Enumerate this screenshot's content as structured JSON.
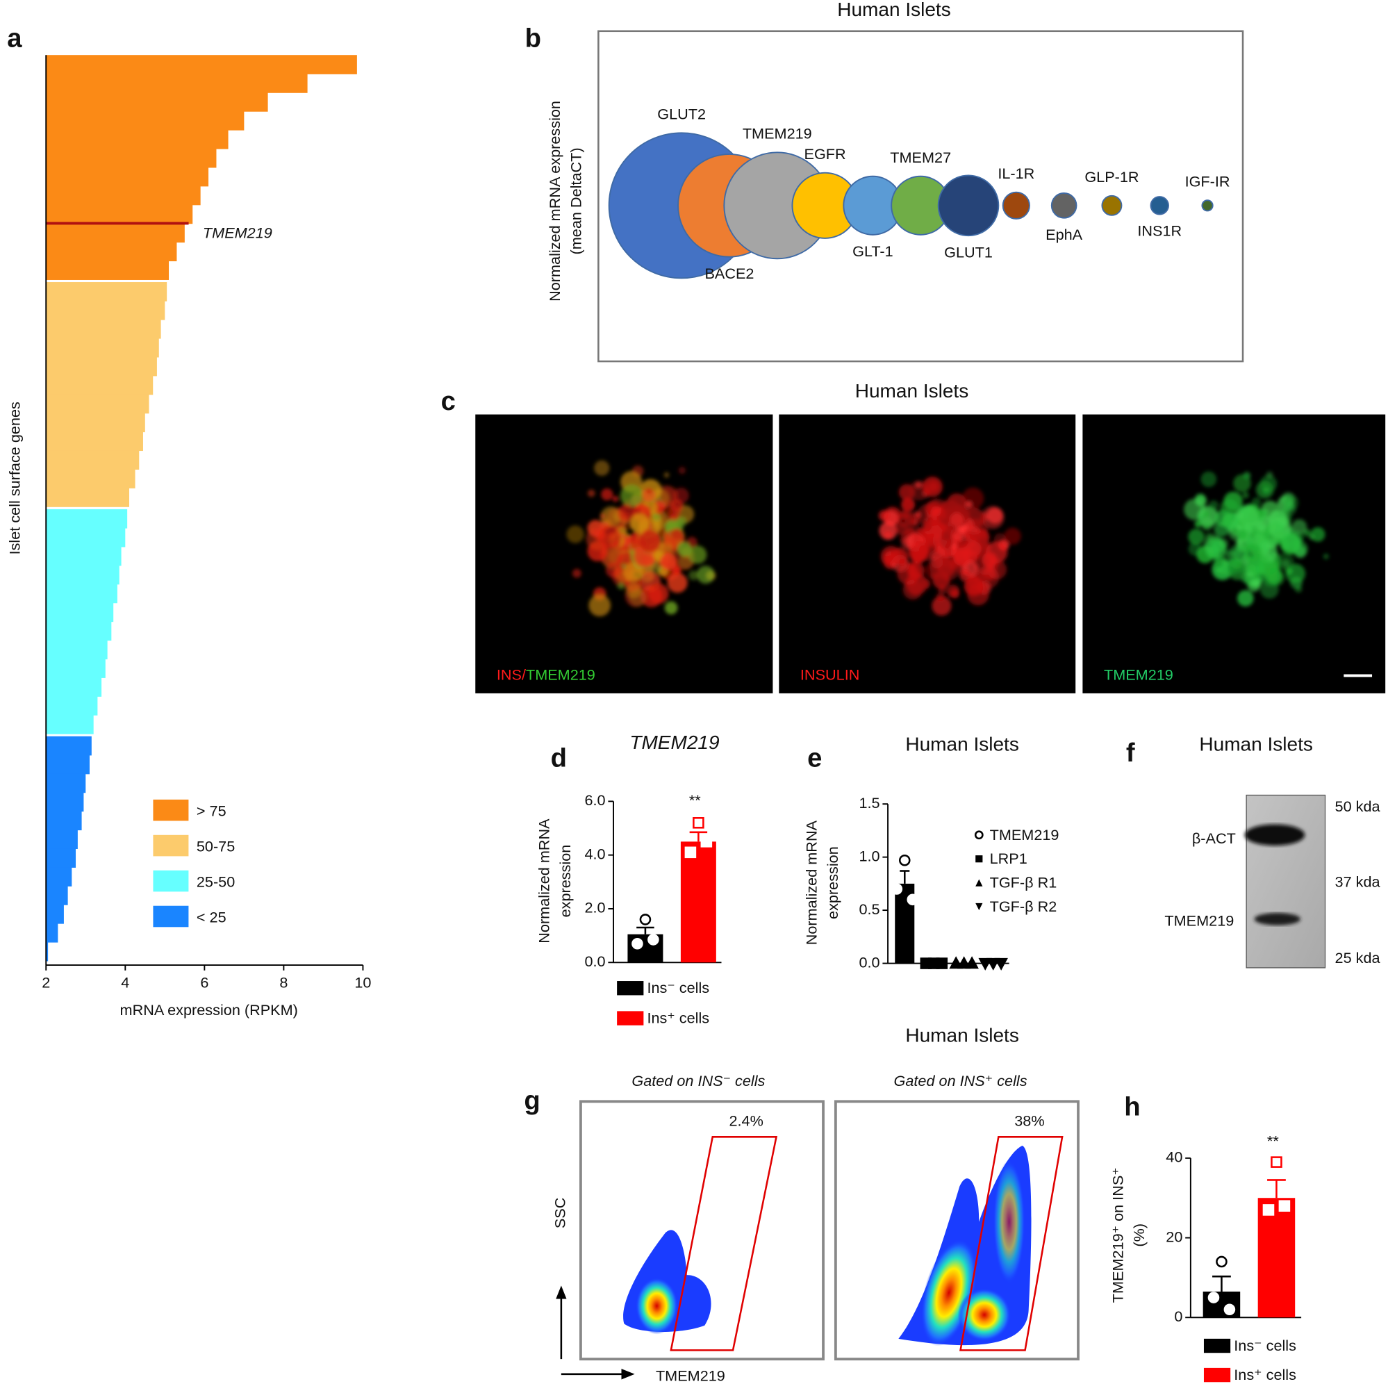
{
  "chart_data": [
    {
      "type": "ranked-hbar",
      "label": "a",
      "ylabel": "Islet cell surface genes",
      "xlabel": "mRNA expression (RPKM)",
      "xlim": [
        2,
        10
      ],
      "xticks": [
        2,
        4,
        6,
        8,
        10
      ],
      "series": [
        {
          "name": "> 75",
          "color": "#fb8a16",
          "values": [
            9.85,
            8.6,
            7.6,
            7.0,
            6.6,
            6.3,
            6.1,
            5.9,
            5.7,
            5.5,
            5.3,
            5.1
          ]
        },
        {
          "name": "50-75",
          "color": "#fccb6c",
          "values": [
            5.05,
            5.0,
            4.9,
            4.85,
            4.8,
            4.7,
            4.6,
            4.5,
            4.45,
            4.35,
            4.25,
            4.1
          ]
        },
        {
          "name": "25-50",
          "color": "#66ffff",
          "values": [
            4.05,
            4.0,
            3.9,
            3.85,
            3.8,
            3.7,
            3.65,
            3.55,
            3.5,
            3.4,
            3.3,
            3.2
          ]
        },
        {
          "name": "< 25",
          "color": "#1a85ff",
          "values": [
            3.15,
            3.1,
            3.0,
            2.95,
            2.9,
            2.8,
            2.75,
            2.65,
            2.55,
            2.45,
            2.3,
            2.05
          ]
        }
      ],
      "annotation": {
        "text": "TMEM219",
        "value": 5.6,
        "color": "#b01010"
      }
    },
    {
      "type": "bubble",
      "label": "b",
      "title": "Human Islets",
      "ylabel": [
        "Normalized mRNA expression",
        "(mean DeltaCT)"
      ],
      "categories": [
        "GLUT2",
        "BACE2",
        "TMEM219",
        "EGFR",
        "GLT-1",
        "TMEM27",
        "GLUT1",
        "IL-1R",
        "EphA",
        "GLP-1R",
        "INS1R",
        "IGF-IR"
      ],
      "values": [
        82,
        58,
        60,
        37,
        33,
        33,
        34,
        15,
        14,
        11,
        10,
        6
      ],
      "colors": [
        "#4472c4",
        "#ed7d31",
        "#a5a5a5",
        "#ffc000",
        "#5b9bd5",
        "#70ad47",
        "#264478",
        "#9e480e",
        "#636363",
        "#997300",
        "#255e91",
        "#43682b"
      ]
    },
    {
      "type": "dotbar",
      "label": "d",
      "title": "TMEM219",
      "ylabel": [
        "Normalized mRNA",
        "expression"
      ],
      "ylim": [
        0,
        6
      ],
      "yticks": [
        {
          "value": 0,
          "label": "0.0"
        },
        {
          "value": 2,
          "label": "2.0"
        },
        {
          "value": 4,
          "label": "4.0"
        },
        {
          "value": 6,
          "label": "6.0"
        }
      ],
      "categories": [
        "Ins⁻ cells",
        "Ins⁺ cells"
      ],
      "colors": [
        "#000000",
        "#ff0000"
      ],
      "markers": [
        "circle",
        "square"
      ],
      "values": [
        1.05,
        4.5
      ],
      "errors": [
        0.25,
        0.35
      ],
      "points": [
        [
          1.6,
          0.7,
          0.85
        ],
        [
          5.2,
          4.1,
          4.5
        ]
      ],
      "significance": [
        null,
        "**"
      ],
      "legend_style": "swatch"
    },
    {
      "type": "dotbar",
      "label": "e",
      "title": "Human Islets",
      "ylabel": [
        "Normalized mRNA",
        "expression"
      ],
      "ylim": [
        0,
        1.5
      ],
      "yticks": [
        {
          "value": 0,
          "label": "0.0"
        },
        {
          "value": 0.5,
          "label": "0.5"
        },
        {
          "value": 1,
          "label": "1.0"
        },
        {
          "value": 1.5,
          "label": "1.5"
        }
      ],
      "categories": [
        "TMEM219",
        "LRP1",
        "TGF-β R1",
        "TGF-β R2"
      ],
      "colors": [
        "#000000",
        "#000000",
        "#000000",
        "#000000"
      ],
      "markers": [
        "circle",
        "square",
        "triangle-up",
        "triangle-down"
      ],
      "values": [
        0.75,
        0,
        0,
        0
      ],
      "errors": [
        0.12,
        null,
        null,
        null
      ],
      "points": [
        [
          0.97,
          0.7,
          0.6
        ],
        [
          0,
          0,
          0
        ],
        [
          0,
          0,
          0
        ],
        [
          0,
          0,
          0
        ]
      ],
      "legend_style": "marker"
    },
    {
      "type": "dotbar",
      "label": "h",
      "ylabel": [
        "TMEM219⁺ on INS⁺",
        "(%)"
      ],
      "ylim": [
        0,
        40
      ],
      "yticks": [
        0,
        20,
        40
      ],
      "categories": [
        "Ins⁻ cells",
        "Ins⁺ cells"
      ],
      "colors": [
        "#000000",
        "#ff0000"
      ],
      "markers": [
        "circle",
        "square"
      ],
      "values": [
        6.5,
        30
      ],
      "errors": [
        3.8,
        4.5
      ],
      "points": [
        [
          14,
          5,
          2
        ],
        [
          39,
          27,
          28
        ]
      ],
      "significance": [
        null,
        "**"
      ],
      "legend_style": "swatch"
    }
  ],
  "panel_c": {
    "label": "c",
    "title": "Human Islets",
    "images": [
      {
        "caption": [
          {
            "text": "INS/",
            "color": "#ff1a1a"
          },
          {
            "text": "TMEM219",
            "color": "#33cc33"
          }
        ]
      },
      {
        "caption": [
          {
            "text": "INSULIN",
            "color": "#ff1a1a"
          }
        ]
      },
      {
        "caption": [
          {
            "text": "TMEM219",
            "color": "#22cc66"
          }
        ]
      }
    ]
  },
  "panel_f": {
    "label": "f",
    "title": "Human Islets",
    "bands": [
      "β-ACT",
      "TMEM219"
    ],
    "markers": [
      "50 kda",
      "37 kda",
      "25 kda"
    ]
  },
  "panel_g": {
    "label": "g",
    "title": "Human Islets",
    "plots": [
      {
        "subtitle": "Gated on INS⁻ cells",
        "gate": "2.4%"
      },
      {
        "subtitle": "Gated on INS⁺ cells",
        "gate": "38%"
      }
    ],
    "y_axis": "SSC",
    "x_axis": "TMEM219"
  }
}
